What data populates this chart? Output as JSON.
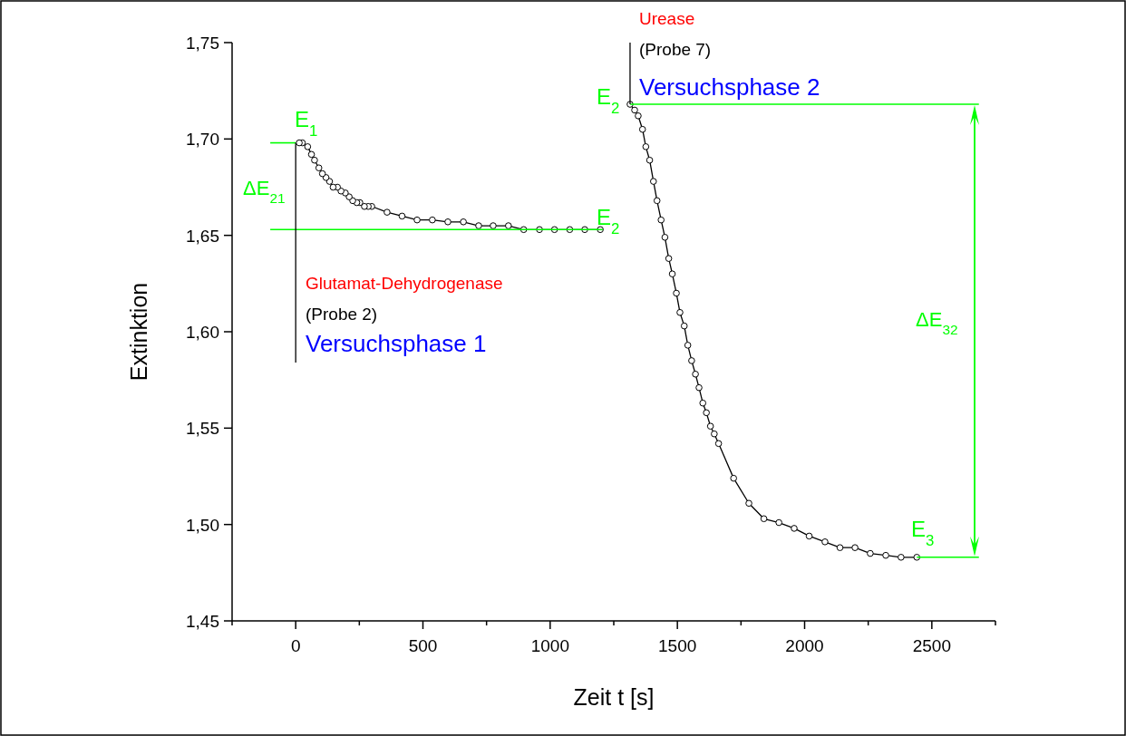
{
  "chart_data": {
    "type": "line",
    "xlabel": "Zeit t [s]",
    "ylabel": "Extinktion",
    "xlim": [
      -250,
      2750
    ],
    "ylim": [
      1.45,
      1.75
    ],
    "xticks": [
      {
        "value": -250,
        "label": null
      },
      0,
      {
        "value": 250,
        "label": null
      },
      500,
      {
        "value": 750,
        "label": null
      },
      1000,
      {
        "value": 1250,
        "label": null
      },
      1500,
      {
        "value": 1750,
        "label": null
      },
      2000,
      {
        "value": 2250,
        "label": null
      },
      2500,
      {
        "value": 2750,
        "label": null
      }
    ],
    "yticks": [
      {
        "value": 1.45,
        "label": "1,45"
      },
      {
        "value": 1.5,
        "label": "1,50"
      },
      {
        "value": 1.55,
        "label": "1,55"
      },
      {
        "value": 1.6,
        "label": "1,60"
      },
      {
        "value": 1.65,
        "label": "1,65"
      },
      {
        "value": 1.7,
        "label": "1,70"
      },
      {
        "value": 1.75,
        "label": "1,75"
      }
    ],
    "grid": false,
    "series": [
      {
        "color": "#000000",
        "marker": "circle",
        "x": [
          14,
          26,
          47,
          62,
          74,
          91,
          105,
          119,
          133,
          147,
          164,
          178,
          195,
          210,
          224,
          240,
          252,
          270,
          285,
          299,
          359,
          418,
          477,
          537,
          598,
          659,
          719,
          776,
          836,
          896,
          958,
          1017,
          1077,
          1136,
          1197
        ],
        "values": [
          1.698,
          1.698,
          1.696,
          1.692,
          1.689,
          1.685,
          1.682,
          1.68,
          1.678,
          1.675,
          1.675,
          1.673,
          1.672,
          1.67,
          1.668,
          1.667,
          1.667,
          1.665,
          1.665,
          1.665,
          1.662,
          1.66,
          1.658,
          1.658,
          1.657,
          1.657,
          1.655,
          1.655,
          1.655,
          1.653,
          1.653,
          1.653,
          1.653,
          1.653,
          1.653
        ]
      },
      {
        "color": "#000000",
        "marker": "circle",
        "x": [
          1314,
          1332,
          1346,
          1363,
          1376,
          1391,
          1406,
          1420,
          1436,
          1451,
          1466,
          1480,
          1496,
          1510,
          1527,
          1541,
          1556,
          1571,
          1585,
          1600,
          1614,
          1630,
          1645,
          1662,
          1721,
          1781,
          1840,
          1899,
          1959,
          2018,
          2080,
          2139,
          2198,
          2258,
          2319,
          2379,
          2441
        ],
        "values": [
          1.718,
          1.715,
          1.712,
          1.705,
          1.696,
          1.689,
          1.678,
          1.668,
          1.658,
          1.649,
          1.638,
          1.63,
          1.62,
          1.61,
          1.603,
          1.593,
          1.585,
          1.578,
          1.571,
          1.563,
          1.558,
          1.551,
          1.547,
          1.542,
          1.524,
          1.511,
          1.503,
          1.501,
          1.498,
          1.494,
          1.491,
          1.488,
          1.488,
          1.485,
          1.484,
          1.483,
          1.483
        ]
      },
      {
        "color": "#00ff00",
        "marker": "none",
        "x": [
          -100,
          0
        ],
        "values": [
          1.698,
          1.698
        ]
      },
      {
        "color": "#00ff00",
        "marker": "none",
        "x": [
          -100,
          1207
        ],
        "values": [
          1.653,
          1.653
        ]
      },
      {
        "color": "#00ff00",
        "marker": "none",
        "x": [
          1314,
          2685
        ],
        "values": [
          1.718,
          1.718
        ]
      },
      {
        "color": "#00ff00",
        "marker": "none",
        "x": [
          2441,
          2685
        ],
        "values": [
          1.483,
          1.483
        ]
      },
      {
        "color": "#000000",
        "marker": "none",
        "x": [
          0,
          0
        ],
        "values": [
          1.698,
          1.584
        ]
      },
      {
        "color": "#000000",
        "marker": "none",
        "x": [
          1314,
          1314
        ],
        "values": [
          1.718,
          1.75
        ]
      }
    ],
    "annotations": [
      "E$_{1}$",
      "ΔE$_{21}$",
      "E$_{2}$",
      "Glutamat-Dehydrogenase",
      "(Probe 2)",
      "Versuchsphase 1",
      "Urease",
      "(Probe 7)",
      "Versuchsphase 2",
      "E$_{2}$",
      "ΔE$_{32}$",
      "E$_{3}$"
    ]
  }
}
